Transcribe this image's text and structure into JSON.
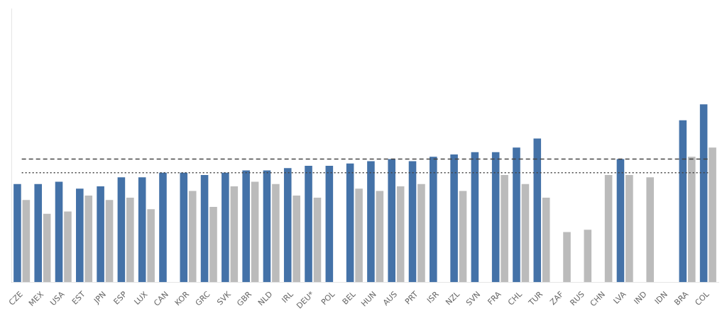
{
  "chart_data": {
    "type": "bar",
    "categories": [
      "CZE",
      "MEX",
      "USA",
      "EST",
      "JPN",
      "ESP",
      "LUX",
      "CAN",
      "KOR",
      "GRC",
      "SVK",
      "GBR",
      "NLD",
      "IRL",
      "DEU*",
      "POL",
      "BEL",
      "HUN",
      "AUS",
      "PRT",
      "ISR",
      "NZL",
      "SVN",
      "FRA",
      "CHL",
      "TUR",
      "ZAF",
      "RUS",
      "CHN",
      "LVA",
      "IND",
      "IDN",
      "BRA",
      "COL"
    ],
    "series": [
      {
        "color": "#4472A8",
        "values": [
          43,
          43,
          44,
          41,
          42,
          46,
          46,
          48,
          48,
          47,
          48,
          49,
          49,
          50,
          51,
          51,
          52,
          53,
          54,
          53,
          55,
          56,
          57,
          57,
          59,
          63,
          null,
          null,
          null,
          54,
          null,
          null,
          71,
          78
        ]
      },
      {
        "color": "#BBBBBB",
        "values": [
          36,
          30,
          31,
          38,
          36,
          37,
          32,
          null,
          40,
          33,
          42,
          44,
          43,
          38,
          37,
          null,
          41,
          40,
          42,
          43,
          null,
          40,
          null,
          47,
          43,
          37,
          22,
          23,
          47,
          47,
          46,
          null,
          55,
          59
        ]
      },
      {
        "type": "line",
        "line_style": "dashed",
        "color": "#444444",
        "values": [
          54,
          54,
          54,
          54,
          54,
          54,
          54,
          54,
          54,
          54,
          54,
          54,
          54,
          54,
          54,
          54,
          54,
          54,
          54,
          54,
          54,
          54,
          54,
          54,
          54,
          54,
          54,
          54,
          54,
          54,
          54,
          54,
          54,
          54
        ]
      },
      {
        "type": "line",
        "line_style": "dotted",
        "color": "#444444",
        "values": [
          48,
          48,
          48,
          48,
          48,
          48,
          48,
          48,
          48,
          48,
          48,
          48,
          48,
          48,
          48,
          48,
          48,
          48,
          48,
          48,
          48,
          48,
          48,
          48,
          48,
          48,
          48,
          48,
          48,
          48,
          48,
          48,
          48,
          48
        ]
      }
    ],
    "ylim": [
      0,
      120
    ],
    "grid": false,
    "tick_labels": "x"
  }
}
